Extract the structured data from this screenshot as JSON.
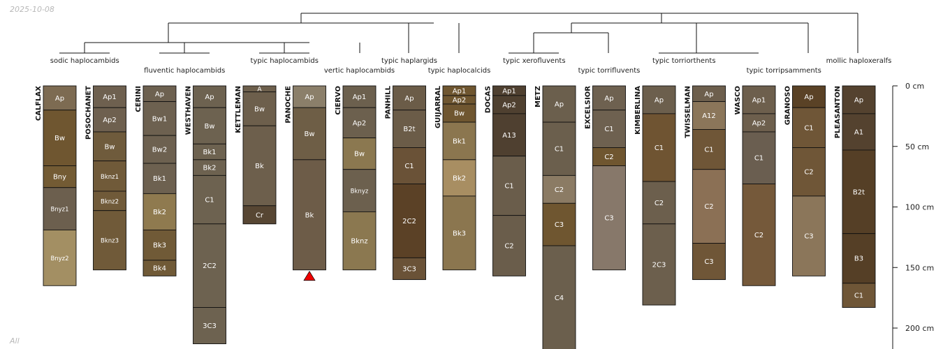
{
  "date": "2025-10-08",
  "footer": "All",
  "chart_data": {
    "type": "soil-profile-sketch",
    "depth_axis": {
      "unit": "cm",
      "ticks": [
        "0 cm",
        "50 cm",
        "100 cm",
        "150 cm",
        "200 cm"
      ],
      "tick_values": [
        0,
        50,
        100,
        150,
        200
      ]
    },
    "profiles": [
      {
        "name": "CALFLAX",
        "taxon": "sodic haplocambids",
        "horizons": [
          {
            "name": "Ap",
            "top": 0,
            "bottom": 20,
            "color": "#7d6b52"
          },
          {
            "name": "Bw",
            "top": 20,
            "bottom": 66,
            "color": "#6f5630"
          },
          {
            "name": "Bny",
            "top": 66,
            "bottom": 84,
            "color": "#735b34"
          },
          {
            "name": "Bnyz1",
            "top": 84,
            "bottom": 119,
            "color": "#6c5f4e"
          },
          {
            "name": "Bnyz2",
            "top": 119,
            "bottom": 165,
            "color": "#a38f63"
          }
        ]
      },
      {
        "name": "POSOCHANET",
        "taxon": "sodic haplocambids",
        "horizons": [
          {
            "name": "Ap1",
            "top": 0,
            "bottom": 18,
            "color": "#6e604f"
          },
          {
            "name": "Ap2",
            "top": 18,
            "bottom": 38,
            "color": "#6e604f"
          },
          {
            "name": "Bw",
            "top": 38,
            "bottom": 62,
            "color": "#6f5b3c"
          },
          {
            "name": "Bknz1",
            "top": 62,
            "bottom": 87,
            "color": "#705a39"
          },
          {
            "name": "Bknz2",
            "top": 87,
            "bottom": 103,
            "color": "#705a39"
          },
          {
            "name": "Bknz3",
            "top": 103,
            "bottom": 152,
            "color": "#705a39"
          }
        ]
      },
      {
        "name": "CERINI",
        "taxon": "fluventic haplocambids",
        "horizons": [
          {
            "name": "Ap",
            "top": 0,
            "bottom": 13,
            "color": "#6d6150"
          },
          {
            "name": "Bw1",
            "top": 13,
            "bottom": 41,
            "color": "#6d6150"
          },
          {
            "name": "Bw2",
            "top": 41,
            "bottom": 64,
            "color": "#6d6150"
          },
          {
            "name": "Bk1",
            "top": 64,
            "bottom": 89,
            "color": "#6d6150"
          },
          {
            "name": "Bk2",
            "top": 89,
            "bottom": 119,
            "color": "#8f7a4f"
          },
          {
            "name": "Bk3",
            "top": 119,
            "bottom": 144,
            "color": "#705a37"
          },
          {
            "name": "Bk4",
            "top": 144,
            "bottom": 157,
            "color": "#705a37"
          }
        ]
      },
      {
        "name": "WESTHAVEN",
        "taxon": "fluventic haplocambids",
        "horizons": [
          {
            "name": "Ap",
            "top": 0,
            "bottom": 18,
            "color": "#6d6250"
          },
          {
            "name": "Bw",
            "top": 18,
            "bottom": 48,
            "color": "#6d6250"
          },
          {
            "name": "Bk1",
            "top": 48,
            "bottom": 61,
            "color": "#6d6250"
          },
          {
            "name": "Bk2",
            "top": 61,
            "bottom": 74,
            "color": "#6d6250"
          },
          {
            "name": "C1",
            "top": 74,
            "bottom": 114,
            "color": "#6d6250"
          },
          {
            "name": "2C2",
            "top": 114,
            "bottom": 183,
            "color": "#6d6250"
          },
          {
            "name": "3C3",
            "top": 183,
            "bottom": 213,
            "color": "#6d6250"
          }
        ]
      },
      {
        "name": "KETTLEMAN",
        "taxon": "typic haplocambids",
        "horizons": [
          {
            "name": "A",
            "top": 0,
            "bottom": 5,
            "color": "#6d5f4c"
          },
          {
            "name": "Bw",
            "top": 5,
            "bottom": 33,
            "color": "#6d5f4c"
          },
          {
            "name": "Bk",
            "top": 33,
            "bottom": 99,
            "color": "#6d5f4c"
          },
          {
            "name": "Cr",
            "top": 99,
            "bottom": 114,
            "color": "#574633"
          }
        ]
      },
      {
        "name": "PANOCHE",
        "taxon": "typic haplocambids",
        "horizons": [
          {
            "name": "Ap",
            "top": 0,
            "bottom": 18,
            "color": "#8b7f6a"
          },
          {
            "name": "Bw",
            "top": 18,
            "bottom": 61,
            "color": "#6e5e46"
          },
          {
            "name": "Bk",
            "top": 61,
            "bottom": 152,
            "color": "#6d5c48"
          }
        ]
      },
      {
        "name": "CIERVO",
        "taxon": "vertic haplocambids",
        "horizons": [
          {
            "name": "Ap1",
            "top": 0,
            "bottom": 18,
            "color": "#6c604e"
          },
          {
            "name": "Ap2",
            "top": 18,
            "bottom": 43,
            "color": "#6c604e"
          },
          {
            "name": "Bw",
            "top": 43,
            "bottom": 69,
            "color": "#8b7850"
          },
          {
            "name": "Bknyz",
            "top": 69,
            "bottom": 104,
            "color": "#6c604e"
          },
          {
            "name": "Bknz",
            "top": 104,
            "bottom": 152,
            "color": "#8b7850"
          }
        ]
      },
      {
        "name": "PANHILL",
        "taxon": "typic haplargids",
        "horizons": [
          {
            "name": "Ap",
            "top": 0,
            "bottom": 20,
            "color": "#6b5c48"
          },
          {
            "name": "B2t",
            "top": 20,
            "bottom": 51,
            "color": "#6b5c48"
          },
          {
            "name": "C1",
            "top": 51,
            "bottom": 81,
            "color": "#6a5237"
          },
          {
            "name": "2C2",
            "top": 81,
            "bottom": 142,
            "color": "#5b4126"
          },
          {
            "name": "3C3",
            "top": 142,
            "bottom": 160,
            "color": "#6a5237"
          }
        ]
      },
      {
        "name": "GUIJARRAL",
        "taxon": "typic haplocalcids",
        "horizons": [
          {
            "name": "Ap1",
            "top": 0,
            "bottom": 8,
            "color": "#6f5630"
          },
          {
            "name": "Ap2",
            "top": 8,
            "bottom": 15,
            "color": "#6f5630"
          },
          {
            "name": "Bw",
            "top": 15,
            "bottom": 30,
            "color": "#6f5630"
          },
          {
            "name": "Bk1",
            "top": 30,
            "bottom": 61,
            "color": "#8b764f"
          },
          {
            "name": "Bk2",
            "top": 61,
            "bottom": 91,
            "color": "#a88e62"
          },
          {
            "name": "Bk3",
            "top": 91,
            "bottom": 152,
            "color": "#8b764f"
          }
        ]
      },
      {
        "name": "DOCAS",
        "taxon": "typic xerofluvents",
        "horizons": [
          {
            "name": "Ap1",
            "top": 0,
            "bottom": 8,
            "color": "#4f4030"
          },
          {
            "name": "Ap2",
            "top": 8,
            "bottom": 23,
            "color": "#4f4030"
          },
          {
            "name": "A13",
            "top": 23,
            "bottom": 58,
            "color": "#4f4030"
          },
          {
            "name": "C1",
            "top": 58,
            "bottom": 107,
            "color": "#6a5d4b"
          },
          {
            "name": "C2",
            "top": 107,
            "bottom": 157,
            "color": "#6a5d4b"
          }
        ]
      },
      {
        "name": "METZ",
        "taxon": "typic xerofluvents",
        "horizons": [
          {
            "name": "Ap",
            "top": 0,
            "bottom": 30,
            "color": "#6b5f4d"
          },
          {
            "name": "C1",
            "top": 30,
            "bottom": 74,
            "color": "#6b5f4d"
          },
          {
            "name": "C2",
            "top": 74,
            "bottom": 97,
            "color": "#8b7b64"
          },
          {
            "name": "C3",
            "top": 97,
            "bottom": 132,
            "color": "#6f5630"
          },
          {
            "name": "C4",
            "top": 132,
            "bottom": 218,
            "color": "#6b5f4d"
          }
        ]
      },
      {
        "name": "EXCELSIOR",
        "taxon": "typic torrifluvents",
        "horizons": [
          {
            "name": "Ap",
            "top": 0,
            "bottom": 20,
            "color": "#6e6150"
          },
          {
            "name": "C1",
            "top": 20,
            "bottom": 51,
            "color": "#6e6150"
          },
          {
            "name": "C2",
            "top": 51,
            "bottom": 66,
            "color": "#6f5630"
          },
          {
            "name": "C3",
            "top": 66,
            "bottom": 152,
            "color": "#87786a"
          }
        ]
      },
      {
        "name": "KIMBERLINA",
        "taxon": "typic torriorthents",
        "horizons": [
          {
            "name": "Ap",
            "top": 0,
            "bottom": 23,
            "color": "#6c5f4d"
          },
          {
            "name": "C1",
            "top": 23,
            "bottom": 79,
            "color": "#6f5432"
          },
          {
            "name": "C2",
            "top": 79,
            "bottom": 114,
            "color": "#6c5f4d"
          },
          {
            "name": "2C3",
            "top": 114,
            "bottom": 181,
            "color": "#6c5f4d"
          }
        ]
      },
      {
        "name": "TWISSELMAN",
        "taxon": "typic torriorthents",
        "horizons": [
          {
            "name": "Ap",
            "top": 0,
            "bottom": 13,
            "color": "#6d5f4d"
          },
          {
            "name": "A12",
            "top": 13,
            "bottom": 36,
            "color": "#8b765a"
          },
          {
            "name": "C1",
            "top": 36,
            "bottom": 69,
            "color": "#6f5637"
          },
          {
            "name": "C2",
            "top": 69,
            "bottom": 130,
            "color": "#8b7055"
          },
          {
            "name": "C3",
            "top": 130,
            "bottom": 160,
            "color": "#6f5637"
          }
        ]
      },
      {
        "name": "WASCO",
        "taxon": "typic torripsamments",
        "horizons": [
          {
            "name": "Ap1",
            "top": 0,
            "bottom": 23,
            "color": "#6d5f4d"
          },
          {
            "name": "Ap2",
            "top": 23,
            "bottom": 38,
            "color": "#6d5f4d"
          },
          {
            "name": "C1",
            "top": 38,
            "bottom": 81,
            "color": "#6a5e50"
          },
          {
            "name": "C2",
            "top": 81,
            "bottom": 165,
            "color": "#75593a"
          }
        ]
      },
      {
        "name": "GRANOSO",
        "taxon": "typic torripsamments",
        "horizons": [
          {
            "name": "Ap",
            "top": 0,
            "bottom": 18,
            "color": "#5a4226"
          },
          {
            "name": "C1",
            "top": 18,
            "bottom": 51,
            "color": "#6f5637"
          },
          {
            "name": "C2",
            "top": 51,
            "bottom": 91,
            "color": "#6f5637"
          },
          {
            "name": "C3",
            "top": 91,
            "bottom": 157,
            "color": "#8b765a"
          }
        ]
      },
      {
        "name": "PLEASANTON",
        "taxon": "mollic haploxeralfs",
        "horizons": [
          {
            "name": "Ap",
            "top": 0,
            "bottom": 23,
            "color": "#54422f"
          },
          {
            "name": "A1",
            "top": 23,
            "bottom": 53,
            "color": "#54422f"
          },
          {
            "name": "B2t",
            "top": 53,
            "bottom": 122,
            "color": "#553f26"
          },
          {
            "name": "B3",
            "top": 122,
            "bottom": 163,
            "color": "#553f26"
          },
          {
            "name": "C1",
            "top": 163,
            "bottom": 183,
            "color": "#6f5637"
          }
        ]
      }
    ],
    "taxa": [
      {
        "label": "sodic haplocambids",
        "members": [
          "CALFLAX",
          "POSOCHANET"
        ]
      },
      {
        "label": "fluventic haplocambids",
        "members": [
          "CERINI",
          "WESTHAVEN"
        ]
      },
      {
        "label": "typic haplocambids",
        "members": [
          "KETTLEMAN",
          "PANOCHE"
        ]
      },
      {
        "label": "vertic haplocambids",
        "members": [
          "CIERVO"
        ]
      },
      {
        "label": "typic haplargids",
        "members": [
          "PANHILL"
        ]
      },
      {
        "label": "typic haplocalcids",
        "members": [
          "GUIJARRAL"
        ]
      },
      {
        "label": "typic xerofluvents",
        "members": [
          "DOCAS",
          "METZ"
        ]
      },
      {
        "label": "typic torrifluvents",
        "members": [
          "EXCELSIOR"
        ]
      },
      {
        "label": "typic torriorthents",
        "members": [
          "KIMBERLINA",
          "TWISSELMAN"
        ]
      },
      {
        "label": "typic torripsamments",
        "members": [
          "WASCO",
          "GRANOSO"
        ]
      },
      {
        "label": "mollic haploxeralfs",
        "members": [
          "PLEASANTON"
        ]
      }
    ],
    "marker": {
      "profile": "PANOCHE",
      "symbol": "triangle",
      "color": "#ee0000"
    },
    "horizon_label_color": "#ffffff",
    "line_color": "#111111"
  }
}
